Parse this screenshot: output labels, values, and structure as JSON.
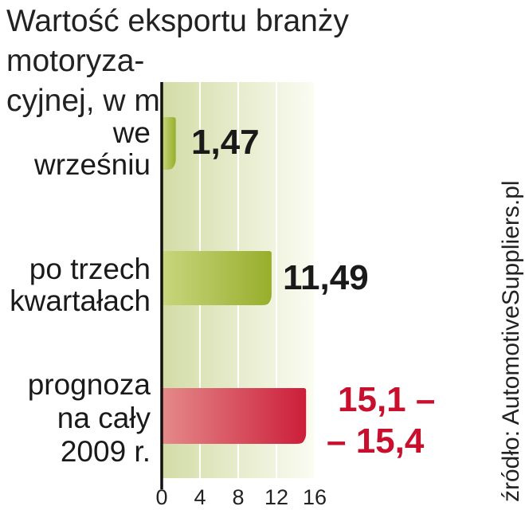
{
  "title": [
    "Wartość eksportu branży motoryza-",
    "cyjnej, w mld euro"
  ],
  "source": "źródło: AutomotiveSuppliers.pl",
  "colors": {
    "green_bar": "#a9bf42",
    "red_bar": "#d0233f",
    "red_text": "#c8102e",
    "dark_text": "#1a1a1a",
    "axis": "#111111"
  },
  "chart_data": {
    "type": "bar",
    "orientation": "horizontal",
    "categories": [
      [
        "we",
        "wrześniu"
      ],
      [
        "po trzech",
        "kwartałach"
      ],
      [
        "prognoza",
        "na cały",
        "2009 r."
      ]
    ],
    "values": [
      1.47,
      11.49,
      15.1
    ],
    "value_ranges": [
      null,
      null,
      [
        15.1,
        15.4
      ]
    ],
    "value_labels": [
      [
        "1,47"
      ],
      [
        "11,49"
      ],
      [
        "15,1 –",
        "– 15,4"
      ]
    ],
    "xticks": [
      "0",
      "4",
      "8",
      "12",
      "16"
    ],
    "xlim": [
      0,
      16
    ],
    "grid": true
  }
}
